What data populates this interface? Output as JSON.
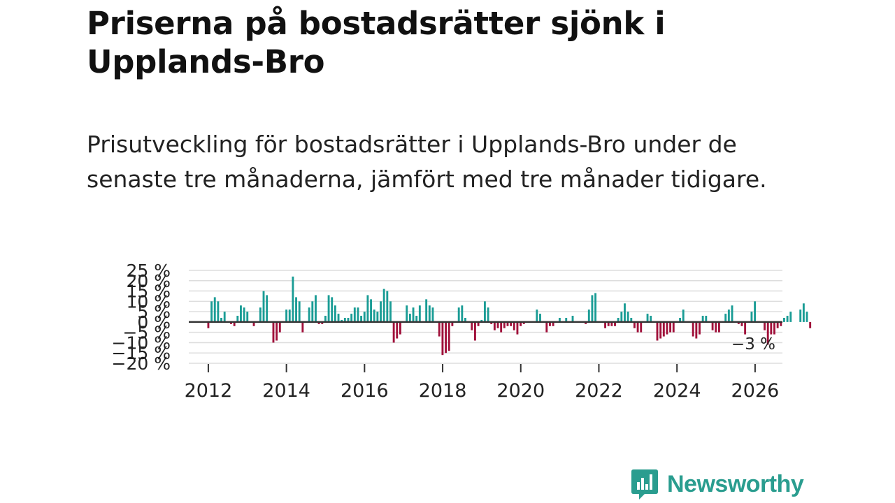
{
  "header": {
    "title": "Priserna på bostadsrätter sjönk i Upplands-Bro",
    "subtitle": "Prisutveckling för bostadsrätter i Upplands-Bro under de senaste tre månaderna, jämfört med tre månader tidigare."
  },
  "colors": {
    "positive": "#1a9c95",
    "negative": "#a0103a",
    "gridline": "#dddddd",
    "zero_line": "#333333",
    "brand": "#2a9d8f"
  },
  "brand": {
    "name": "Newsworthy",
    "logo_icon": "bar-chart-speech-bubble-icon"
  },
  "chart_data": {
    "type": "bar",
    "title": "Prisutveckling för bostadsrätter i Upplands-Bro",
    "xlabel": "",
    "ylabel": "",
    "x_range": [
      2011.5,
      2026.7
    ],
    "ylim": [
      -20,
      25
    ],
    "yticks": [
      -20,
      -15,
      -10,
      -5,
      0,
      5,
      10,
      15,
      20,
      25
    ],
    "ytick_labels": [
      "−20 %",
      "−15 %",
      "−10 %",
      "−5 %",
      "0 %",
      "5 %",
      "10 %",
      "15 %",
      "20 %",
      "25 %"
    ],
    "xticks": [
      2012,
      2014,
      2016,
      2018,
      2020,
      2022,
      2024,
      2026
    ],
    "xtick_labels": [
      "2012",
      "2014",
      "2016",
      "2018",
      "2020",
      "2022",
      "2024",
      "2026"
    ],
    "start": 2012.0,
    "step_years": 0.0833,
    "values": [
      -3,
      10,
      12,
      10,
      2,
      5,
      0,
      -1,
      -2,
      3,
      8,
      7,
      5,
      0,
      -2,
      0,
      7,
      15,
      13,
      0,
      -10,
      -9,
      -5,
      0,
      6,
      6,
      22,
      12,
      10,
      -5,
      0,
      7,
      10,
      13,
      -1,
      -1,
      3,
      13,
      12,
      8,
      4,
      1,
      2,
      2,
      4,
      7,
      7,
      3,
      5,
      13,
      11,
      6,
      5,
      10,
      16,
      15,
      10,
      -10,
      -8,
      -6,
      0,
      8,
      4,
      7,
      3,
      8,
      0,
      11,
      8,
      7,
      0,
      -7,
      -16,
      -15,
      -14,
      -2,
      0,
      7,
      8,
      2,
      0,
      -4,
      -9,
      -2,
      1,
      10,
      7,
      -1,
      -4,
      -3,
      -5,
      -3,
      -2,
      -2,
      -4,
      -6,
      -2,
      -1,
      0,
      0,
      0,
      6,
      4,
      0,
      -5,
      -2,
      -2,
      0,
      2,
      0,
      2,
      0,
      3,
      0,
      0,
      0,
      -1,
      6,
      13,
      14,
      0,
      0,
      -3,
      -2,
      -2,
      -2,
      2,
      5,
      9,
      5,
      2,
      -3,
      -5,
      -5,
      0,
      4,
      3,
      0,
      -9,
      -8,
      -7,
      -6,
      -5,
      -5,
      0,
      2,
      6,
      0,
      0,
      -7,
      -8,
      -6,
      3,
      3,
      0,
      -4,
      -5,
      -5,
      0,
      4,
      6,
      8,
      0,
      -1,
      -2,
      -6,
      0,
      5,
      10,
      0,
      0,
      -4,
      -11,
      -6,
      -6,
      -3,
      -2,
      2,
      3,
      5,
      0,
      0,
      6,
      9,
      5,
      -3
    ],
    "annotation": {
      "label": "−3 %",
      "value": -3,
      "position": "last-bar"
    }
  }
}
